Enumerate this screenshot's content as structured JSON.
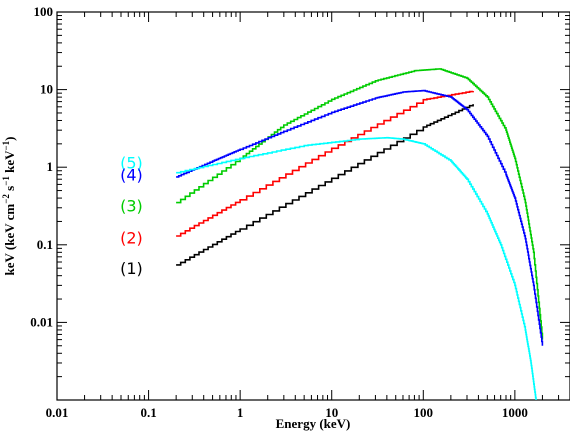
{
  "chart_data": {
    "type": "line",
    "x_scale": "log",
    "y_scale": "log",
    "xlim": [
      0.01,
      4000
    ],
    "ylim": [
      0.001,
      100
    ],
    "xlabel": "Energy (keV)",
    "ylabel_parts": [
      "keV (keV cm",
      "−2",
      " s",
      "−1",
      " keV",
      "−1",
      ")"
    ],
    "x_ticks": [
      {
        "value": 0.01,
        "label": "0.01"
      },
      {
        "value": 0.1,
        "label": "0.1"
      },
      {
        "value": 1,
        "label": "1"
      },
      {
        "value": 10,
        "label": "10"
      },
      {
        "value": 100,
        "label": "100"
      },
      {
        "value": 1000,
        "label": "1000"
      }
    ],
    "y_ticks": [
      {
        "value": 0.01,
        "label": "0.01"
      },
      {
        "value": 0.1,
        "label": "0.1"
      },
      {
        "value": 1,
        "label": "1"
      },
      {
        "value": 10,
        "label": "10"
      },
      {
        "value": 100,
        "label": "100"
      }
    ],
    "grid": false,
    "series": [
      {
        "label": "(1)",
        "color": "#000000",
        "x": [
          0.2,
          1,
          10,
          100,
          350
        ],
        "y": [
          0.055,
          0.16,
          0.72,
          3.3,
          6.5
        ]
      },
      {
        "label": "(2)",
        "color": "#ff0000",
        "x": [
          0.2,
          1,
          10,
          100,
          350
        ],
        "y": [
          0.13,
          0.38,
          1.75,
          7.4,
          9.6
        ]
      },
      {
        "label": "(3)",
        "color": "#00cc00",
        "x": [
          0.2,
          1,
          3,
          10,
          30,
          80,
          150,
          300,
          500,
          800,
          1000,
          1300,
          1600,
          2000
        ],
        "y": [
          0.35,
          1.3,
          3.5,
          7.5,
          13,
          17.5,
          18.5,
          14,
          8,
          3,
          1.3,
          0.35,
          0.08,
          0.006
        ]
      },
      {
        "label": "(4)",
        "color": "#0000ff",
        "x": [
          0.2,
          0.5,
          1,
          3,
          10,
          30,
          60,
          100,
          200,
          300,
          500,
          800,
          1000,
          1300,
          1600,
          2000
        ],
        "y": [
          0.75,
          1.2,
          1.7,
          2.9,
          5.1,
          7.8,
          9.3,
          9.7,
          8,
          5.5,
          2.5,
          0.8,
          0.4,
          0.12,
          0.03,
          0.005
        ]
      },
      {
        "label": "(5)",
        "color": "#00ffff",
        "x": [
          0.2,
          1,
          5,
          20,
          40,
          60,
          100,
          200,
          300,
          500,
          700,
          1000,
          1300,
          1500,
          1700
        ],
        "y": [
          0.85,
          1.3,
          1.9,
          2.3,
          2.4,
          2.3,
          2,
          1.2,
          0.7,
          0.25,
          0.1,
          0.03,
          0.008,
          0.003,
          0.001
        ]
      }
    ],
    "annotations": [
      {
        "text": "(5)",
        "color": "#00ffff",
        "x": 0.065,
        "y": 1.15
      },
      {
        "text": "(4)",
        "color": "#0000ff",
        "x": 0.065,
        "y": 0.8
      },
      {
        "text": "(3)",
        "color": "#00cc00",
        "x": 0.065,
        "y": 0.32
      },
      {
        "text": "(2)",
        "color": "#ff0000",
        "x": 0.065,
        "y": 0.125
      },
      {
        "text": "(1)",
        "color": "#000000",
        "x": 0.065,
        "y": 0.05
      }
    ]
  }
}
